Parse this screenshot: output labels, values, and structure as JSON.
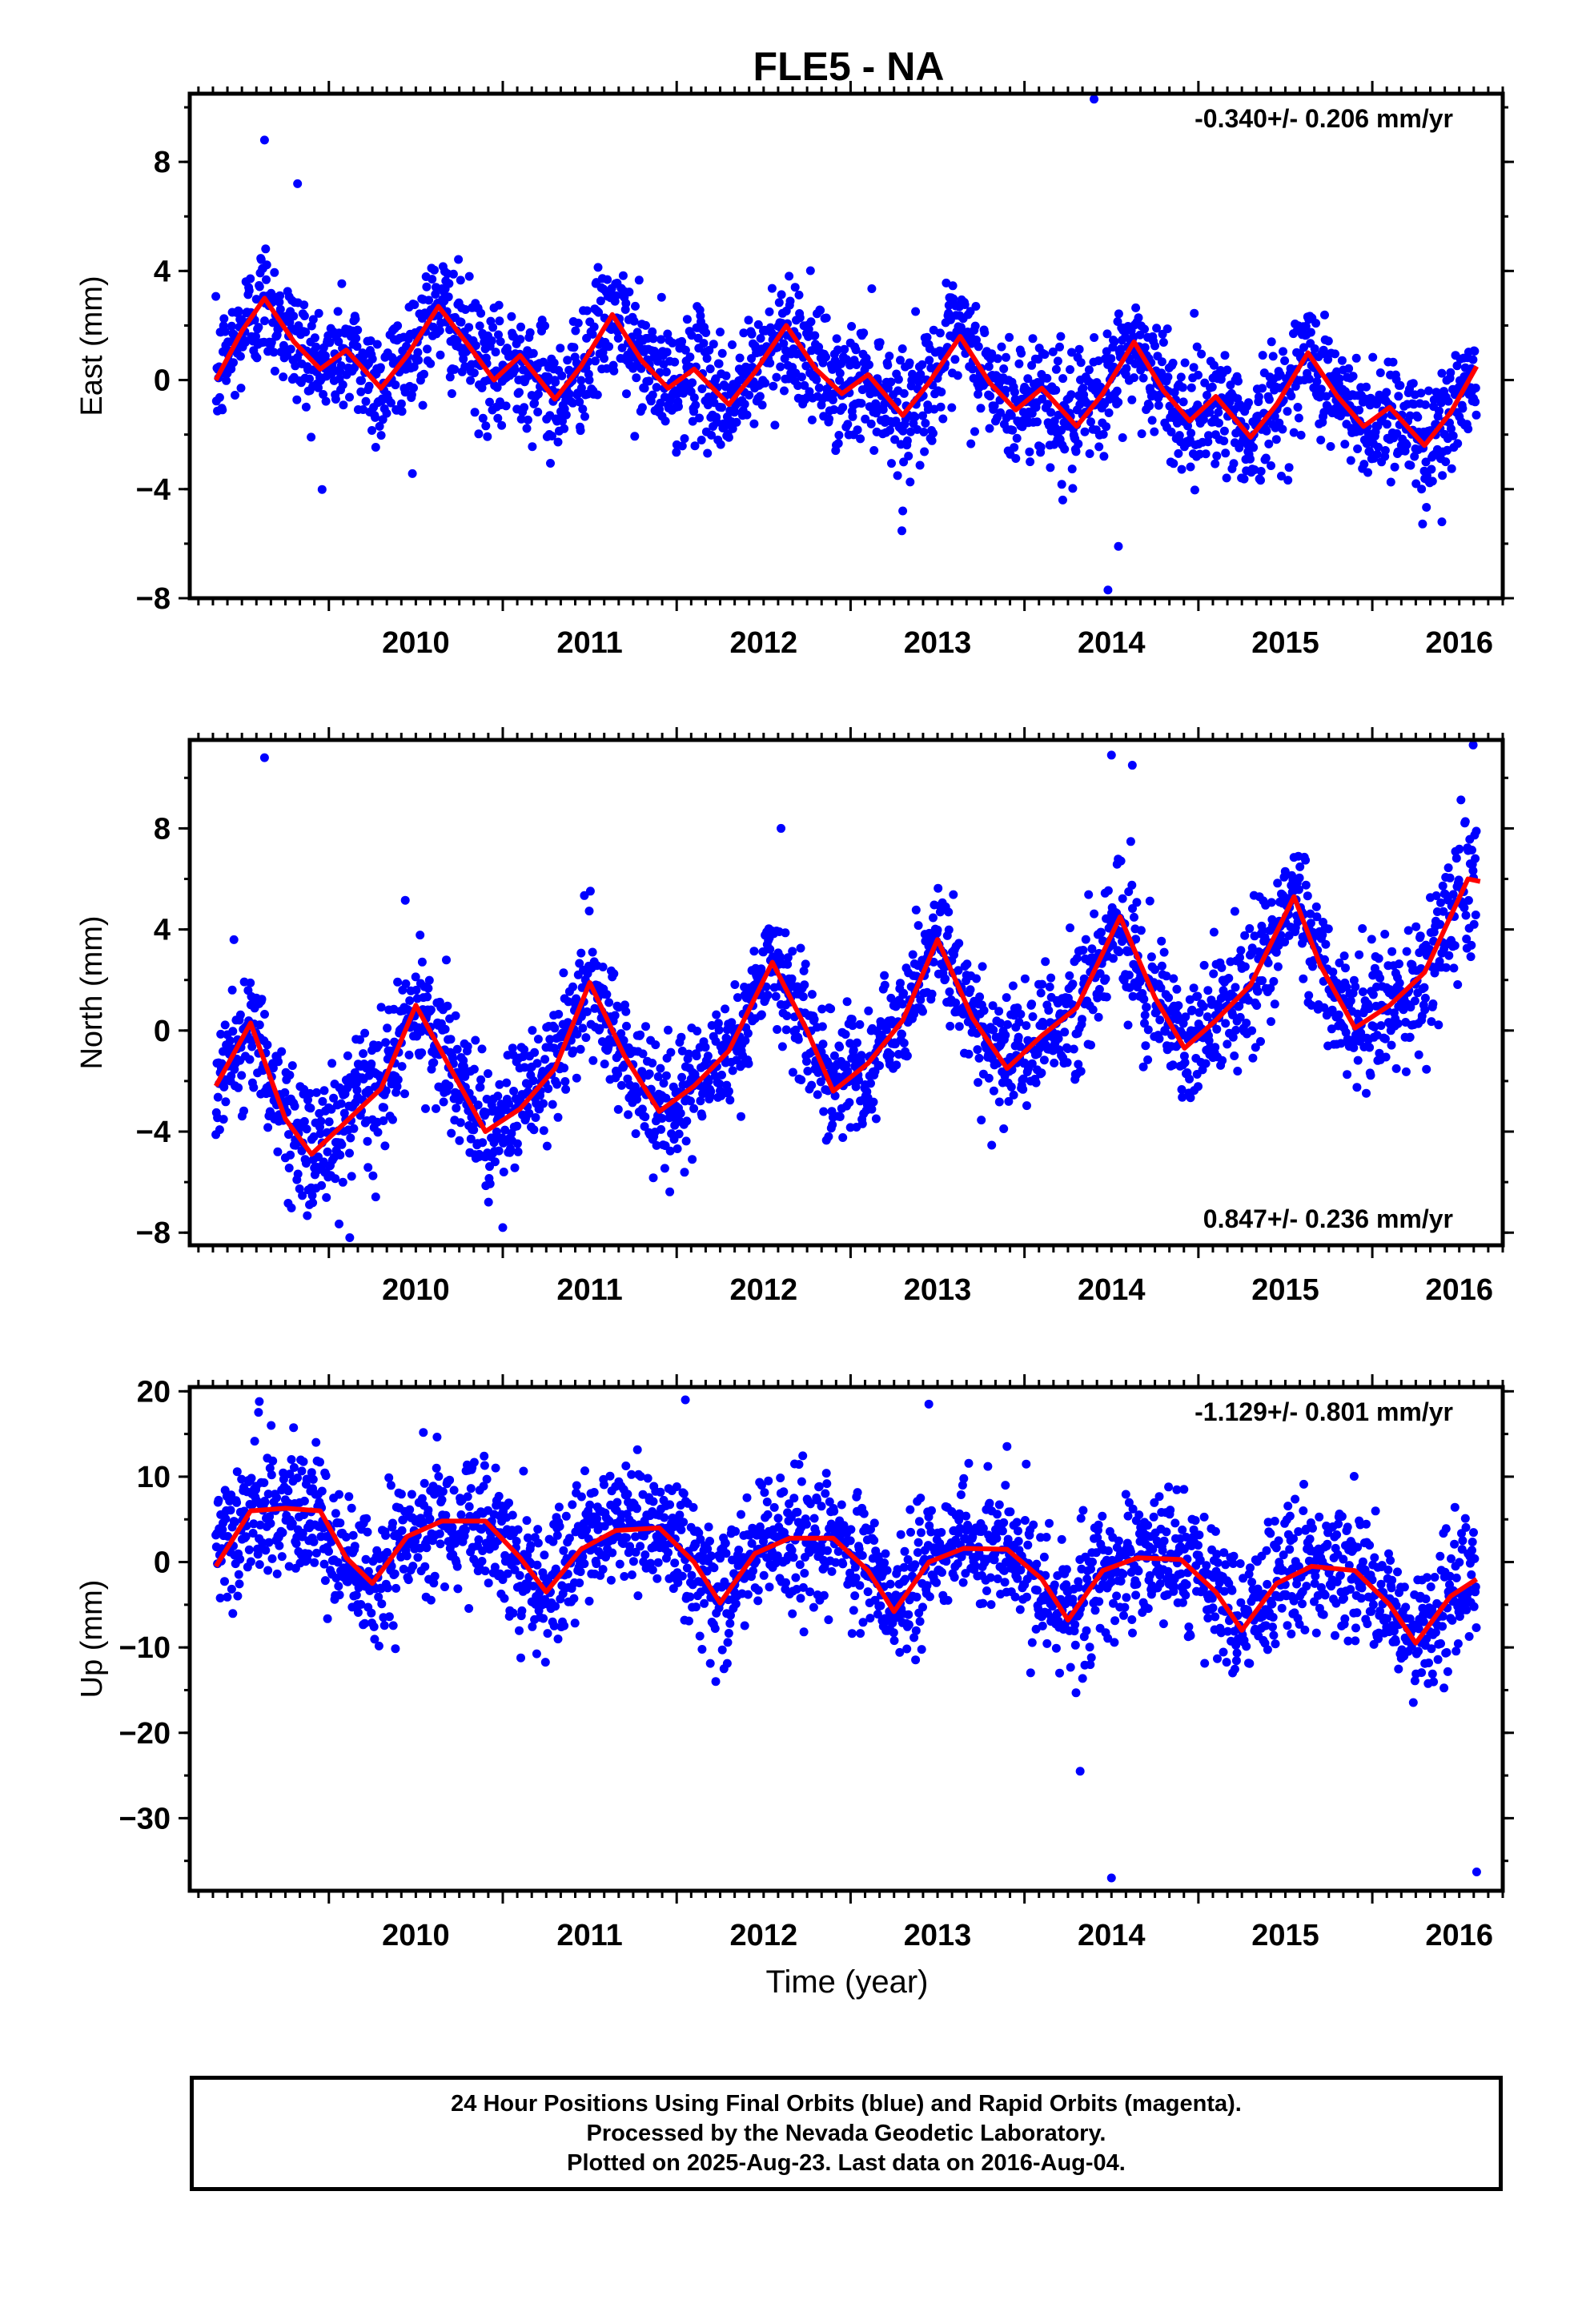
{
  "title": "FLE5 - NA",
  "x_axis_label": "Time (year)",
  "footer": [
    "24 Hour Positions Using Final Orbits (blue) and Rapid Orbits (magenta).",
    "Processed by the Nevada Geodetic Laboratory.",
    "Plotted on 2025-Aug-23. Last data on 2016-Aug-04."
  ],
  "colors": {
    "data_points": "#0000ff",
    "fit_line": "#ff0000",
    "frame": "#000000"
  },
  "chart_data": [
    {
      "type": "scatter",
      "ylabel": "East (mm)",
      "rate": "-0.340+/- 0.206 mm/yr",
      "rate_position": "top-right",
      "xlim": [
        2009.2,
        2016.75
      ],
      "ylim": [
        -8,
        10.5
      ],
      "yticks": [
        -8,
        -4,
        0,
        4,
        8
      ],
      "xticks": [
        2010,
        2011,
        2012,
        2013,
        2014,
        2015,
        2016
      ],
      "trend": -0.34,
      "offset": -0.1,
      "noise": 1.3,
      "seasonal_knots": [
        0.0,
        2.3,
        1.0,
        -0.2,
        1.6,
        0.0,
        0.0
      ],
      "fit_line": {
        "x": [
          2009.35,
          2009.5,
          2009.63,
          2009.8,
          2009.95,
          2010.1,
          2010.3,
          2010.45,
          2010.63,
          2010.8,
          2010.95,
          2011.1,
          2011.3,
          2011.45,
          2011.63,
          2011.8,
          2011.95,
          2012.1,
          2012.3,
          2012.45,
          2012.63,
          2012.8,
          2012.95,
          2013.1,
          2013.3,
          2013.45,
          2013.63,
          2013.8,
          2013.95,
          2014.1,
          2014.3,
          2014.45,
          2014.63,
          2014.8,
          2014.95,
          2015.1,
          2015.3,
          2015.45,
          2015.63,
          2015.8,
          2015.95,
          2016.1,
          2016.3,
          2016.45,
          2016.6
        ],
        "y": [
          0.0,
          1.8,
          3.0,
          1.4,
          0.4,
          1.1,
          -0.3,
          0.9,
          2.7,
          1.3,
          0.0,
          0.9,
          -0.7,
          0.5,
          2.4,
          0.7,
          -0.3,
          0.4,
          -0.9,
          0.3,
          2.0,
          0.4,
          -0.5,
          0.2,
          -1.3,
          -0.1,
          1.6,
          -0.1,
          -1.1,
          -0.3,
          -1.7,
          -0.5,
          1.4,
          -0.4,
          -1.5,
          -0.6,
          -2.1,
          -0.9,
          1.0,
          -0.6,
          -1.7,
          -1.0,
          -2.4,
          -1.2,
          0.5
        ]
      },
      "outliers": [
        {
          "x": 2009.63,
          "y": 8.8
        },
        {
          "x": 2009.82,
          "y": 7.2
        },
        {
          "x": 2014.4,
          "y": 10.3
        },
        {
          "x": 2014.48,
          "y": -7.7
        },
        {
          "x": 2014.54,
          "y": -6.1
        },
        {
          "x": 2014.22,
          "y": -4.4
        },
        {
          "x": 2016.4,
          "y": -5.2
        },
        {
          "x": 2013.3,
          "y": -4.8
        }
      ]
    },
    {
      "type": "scatter",
      "ylabel": "North (mm)",
      "rate": "0.847+/- 0.236 mm/yr",
      "rate_position": "bottom-right",
      "xlim": [
        2009.2,
        2016.75
      ],
      "ylim": [
        -8.5,
        11.5
      ],
      "yticks": [
        -8,
        -4,
        0,
        4,
        8
      ],
      "xticks": [
        2010,
        2011,
        2012,
        2013,
        2014,
        2015,
        2016
      ],
      "trend": 0.847,
      "offset": -2.5,
      "noise": 1.5,
      "seasonal_knots": [
        -1.0,
        2.5,
        -0.5,
        -3.0,
        0.0,
        -1.0,
        -1.0
      ],
      "fit_line": {
        "x": [
          2009.35,
          2009.55,
          2009.75,
          2009.9,
          2010.1,
          2010.3,
          2010.5,
          2010.7,
          2010.9,
          2011.1,
          2011.3,
          2011.5,
          2011.7,
          2011.9,
          2012.1,
          2012.3,
          2012.55,
          2012.75,
          2012.9,
          2013.1,
          2013.3,
          2013.5,
          2013.7,
          2013.9,
          2014.1,
          2014.3,
          2014.55,
          2014.75,
          2014.92,
          2015.1,
          2015.3,
          2015.55,
          2015.7,
          2015.9,
          2016.1,
          2016.3,
          2016.55,
          2016.62
        ],
        "y": [
          -2.2,
          0.3,
          -3.5,
          -4.9,
          -3.6,
          -2.3,
          1.0,
          -1.5,
          -4.0,
          -3.1,
          -1.5,
          1.9,
          -1.0,
          -3.2,
          -2.2,
          -0.8,
          2.7,
          0.0,
          -2.4,
          -1.3,
          0.4,
          3.6,
          0.5,
          -1.5,
          -0.2,
          0.9,
          4.5,
          1.3,
          -0.7,
          0.4,
          1.8,
          5.3,
          2.6,
          0.1,
          1.0,
          2.3,
          6.0,
          5.9
        ]
      },
      "outliers": [
        {
          "x": 2009.63,
          "y": 10.8
        },
        {
          "x": 2010.12,
          "y": -8.2
        },
        {
          "x": 2012.6,
          "y": 8.0
        },
        {
          "x": 2014.5,
          "y": 10.9
        },
        {
          "x": 2014.62,
          "y": 10.5
        },
        {
          "x": 2016.58,
          "y": 11.3
        },
        {
          "x": 2011.0,
          "y": -7.8
        }
      ]
    },
    {
      "type": "scatter",
      "ylabel": "Up (mm)",
      "rate": "-1.129+/- 0.801 mm/yr",
      "rate_position": "top-right",
      "xlim": [
        2009.2,
        2016.75
      ],
      "ylim": [
        -38.5,
        20.5
      ],
      "yticks": [
        -30,
        -20,
        -10,
        0,
        10,
        20
      ],
      "xticks": [
        2010,
        2011,
        2012,
        2013,
        2014,
        2015,
        2016
      ],
      "trend": -1.129,
      "offset": 3.5,
      "noise": 4.5,
      "seasonal_knots": [
        0.0,
        2.5,
        3.0,
        1.5,
        -5.0,
        -2.0,
        0.0
      ],
      "fit_line": {
        "x": [
          2009.35,
          2009.55,
          2009.75,
          2009.95,
          2010.1,
          2010.25,
          2010.45,
          2010.65,
          2010.9,
          2011.1,
          2011.25,
          2011.45,
          2011.65,
          2011.9,
          2012.1,
          2012.25,
          2012.45,
          2012.65,
          2012.9,
          2013.1,
          2013.25,
          2013.45,
          2013.65,
          2013.9,
          2014.1,
          2014.25,
          2014.45,
          2014.65,
          2014.9,
          2015.1,
          2015.25,
          2015.45,
          2015.65,
          2015.9,
          2016.1,
          2016.25,
          2016.45,
          2016.6
        ],
        "y": [
          -0.5,
          6.0,
          6.3,
          6.0,
          0.5,
          -2.5,
          3.0,
          4.8,
          4.8,
          0.5,
          -3.5,
          1.5,
          3.7,
          4.0,
          0.0,
          -4.8,
          1.0,
          2.8,
          2.8,
          -1.0,
          -5.8,
          0.0,
          1.6,
          1.5,
          -2.0,
          -6.8,
          -1.0,
          0.5,
          0.3,
          -3.5,
          -8.0,
          -2.5,
          -0.5,
          -1.0,
          -5.0,
          -9.5,
          -4.0,
          -2.0
        ]
      },
      "outliers": [
        {
          "x": 2014.5,
          "y": -37.0
        },
        {
          "x": 2016.6,
          "y": -36.3
        },
        {
          "x": 2014.32,
          "y": -24.5
        },
        {
          "x": 2009.6,
          "y": 18.8
        },
        {
          "x": 2012.05,
          "y": 19.0
        },
        {
          "x": 2013.45,
          "y": 18.5
        }
      ]
    }
  ]
}
